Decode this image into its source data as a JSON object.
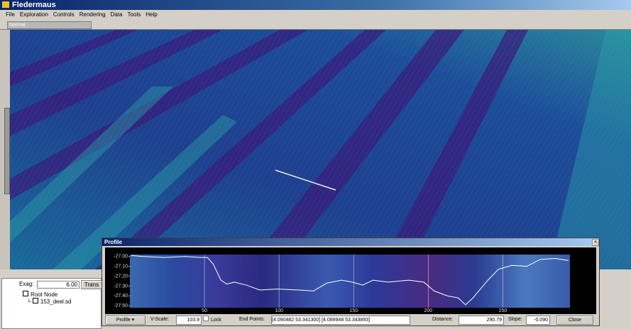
{
  "window_title": "Fledermaus",
  "menu": [
    "File",
    "Exploration",
    "Controls",
    "Rendering",
    "Data",
    "Tools",
    "Help"
  ],
  "tab": "Normal",
  "left_panel": {
    "exag_label": "Exag:",
    "exag_value": "6.00",
    "trans_button": "Trans",
    "tree": [
      "Root Node",
      "153_deel.sd"
    ]
  },
  "profile_window": {
    "title": "Profile",
    "toolbar": {
      "mode": "Profile",
      "vscale_label": "V-Scale:",
      "vscale_value": "103.9",
      "lock": "Lock",
      "endpoints_label": "End Points:",
      "endpoints_value": "[4.090482 53.341300] [4.089948 53.343893]",
      "distance_label": "Distance:",
      "distance_value": "290.79",
      "slope_label": "Slope:",
      "slope_value": "-0.090",
      "close": "Close"
    }
  },
  "chart_data": {
    "type": "line",
    "x": [
      1,
      9,
      23,
      37,
      47,
      52,
      56,
      61,
      65,
      70,
      78,
      87,
      99,
      113,
      123,
      132,
      142,
      149,
      156,
      163,
      173,
      187,
      197,
      204,
      213,
      220,
      225,
      230,
      240,
      247,
      256,
      266,
      275,
      285,
      294
    ],
    "series": [
      {
        "color": "#ffffff",
        "values": [
          -26.99,
          -27.0,
          -27.01,
          -27.0,
          -27.01,
          -27.01,
          -27.08,
          -27.24,
          -27.28,
          -27.26,
          -27.29,
          -27.34,
          -27.33,
          -27.34,
          -27.35,
          -27.27,
          -27.24,
          -27.26,
          -27.29,
          -27.24,
          -27.26,
          -27.24,
          -27.26,
          -27.35,
          -27.4,
          -27.42,
          -27.49,
          -27.42,
          -27.24,
          -27.13,
          -27.09,
          -27.1,
          -27.03,
          -27.02,
          -27.04
        ]
      }
    ],
    "xlim": [
      0,
      295
    ],
    "ylim": [
      -27.52,
      -26.98
    ],
    "xticks": [
      50,
      100,
      150,
      200,
      250
    ],
    "yticks": [
      {
        "value": -27.0,
        "label": "-27.00"
      },
      {
        "value": -27.1,
        "label": "-27.10"
      },
      {
        "value": -27.2,
        "label": "-27.20"
      },
      {
        "value": -27.3,
        "label": "-27.30"
      },
      {
        "value": -27.4,
        "label": "-27.40"
      },
      {
        "value": -27.5,
        "label": "-27.50"
      }
    ],
    "grid": "x"
  }
}
